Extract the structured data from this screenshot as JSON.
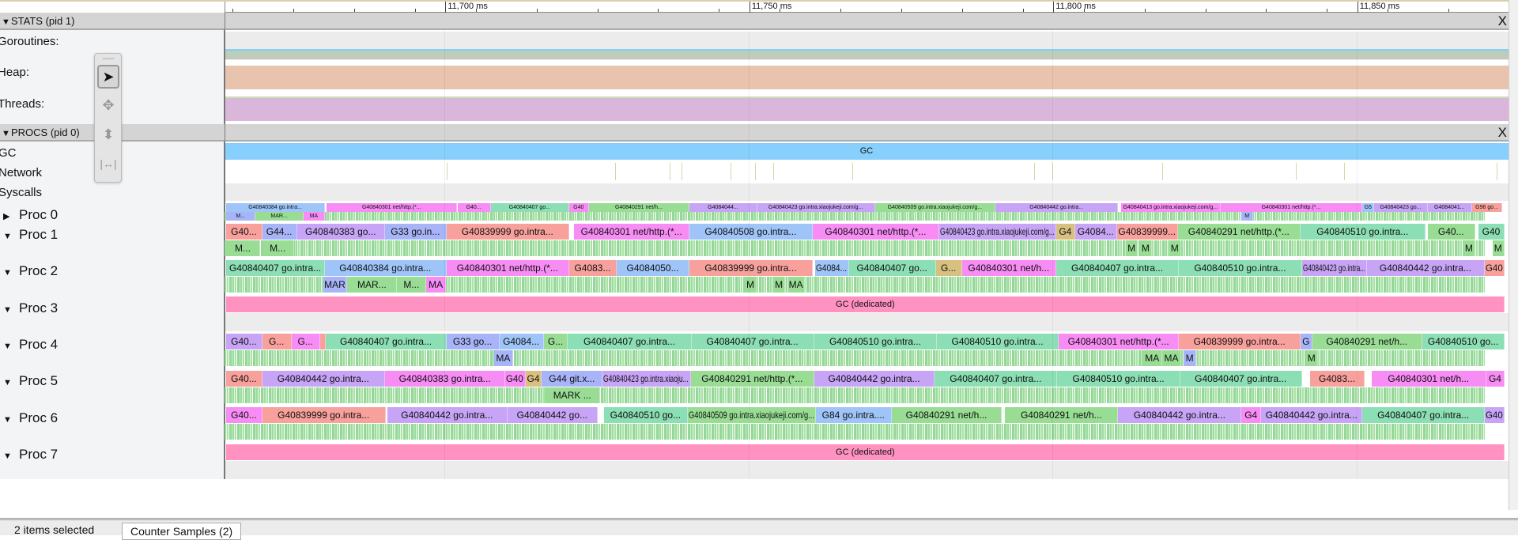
{
  "ruler": {
    "range_ms": [
      11663.8,
      11875
    ],
    "labels": [
      {
        "ms": 11700,
        "text": "11,700 ms"
      },
      {
        "ms": 11750,
        "text": "11,750 ms"
      },
      {
        "ms": 11800,
        "text": "11,800 ms"
      },
      {
        "ms": 11850,
        "text": "11,850 ms"
      }
    ]
  },
  "stats": {
    "header": "STATS (pid 1)",
    "close": "X",
    "rows": [
      "Goroutines:",
      "Heap:",
      "Threads:"
    ]
  },
  "procs": {
    "header": "PROCS (pid 0)",
    "close": "X",
    "gc_label": "GC",
    "gc_slice": "GC",
    "network": "Network",
    "syscalls": "Syscalls",
    "proc_names": [
      "Proc 0",
      "Proc 1",
      "Proc 2",
      "Proc 3",
      "Proc 4",
      "Proc 5",
      "Proc 6",
      "Proc 7"
    ]
  },
  "colors": {
    "p": "#f88cf5",
    "s": "#f8a19c",
    "b": "#9fc4f8",
    "l": "#c7a4f6",
    "w": "#a8b4f8",
    "m": "#8cdeb4",
    "g": "#99dd95",
    "t": "#d8c080",
    "gc": "#87cffc",
    "gcd": "#ff92c0",
    "heap": "#e8c3ae",
    "threads": "#dab7da",
    "gor": "#bfcbbb",
    "gor_top": "#8fd0e6"
  },
  "slices": {
    "proc0": [
      [
        11664.1,
        11680.3,
        "G40840384 go.intra...",
        "b"
      ],
      [
        11680.6,
        11702.1,
        "G40840301 net/http.(*...",
        "p"
      ],
      [
        11702.1,
        11707.6,
        "G40...",
        "p"
      ],
      [
        11707.6,
        11720.5,
        "G40840407 go...",
        "m"
      ],
      [
        11720.5,
        11723.7,
        "G40",
        "p"
      ],
      [
        11723.7,
        11740.3,
        "G40840291 net/h...",
        "g"
      ],
      [
        11740.3,
        11751.4,
        "G4084044...",
        "l"
      ],
      [
        11751.4,
        11770.8,
        "G40840423 go.intra.xiaojukeji.com/g...",
        "l"
      ],
      [
        11770.8,
        11790.6,
        "G40840509 go.intra.xiaojukeji.com/g...",
        "g"
      ],
      [
        11790.6,
        11810.8,
        "G40840442 go.intra...",
        "l"
      ],
      [
        11811.3,
        11827.6,
        "G40840413 go.intra.xiaojukeji.com/g...",
        "p"
      ],
      [
        11827.6,
        11851.0,
        "G40840301 net/http.(*...",
        "p"
      ],
      [
        11851.0,
        11852.9,
        "G5",
        "b"
      ],
      [
        11852.9,
        11861.7,
        "G40840423 go...",
        "l"
      ],
      [
        11861.7,
        11869.0,
        "G4084041...",
        "l"
      ],
      [
        11869.0,
        11874.0,
        "G96 go...",
        "s"
      ]
    ],
    "proc0_sub": [
      [
        11664.1,
        11668.9,
        "M...",
        "w"
      ],
      [
        11668.9,
        11676.8,
        "MAR...",
        "g"
      ],
      [
        11676.8,
        11680.3,
        "MA",
        "p"
      ],
      [
        11831.1,
        11833.0,
        "M",
        "w"
      ]
    ],
    "proc1": [
      [
        11664.1,
        11670.0,
        "G40...",
        "s"
      ],
      [
        11670.0,
        11675.7,
        "G44...",
        "w"
      ],
      [
        11675.7,
        11690.2,
        "G40840383 go...",
        "l"
      ],
      [
        11690.2,
        11700.3,
        "G33 go.in...",
        "w"
      ],
      [
        11700.3,
        11720.5,
        "G40839999 go.intra...",
        "s"
      ],
      [
        11721.3,
        11740.3,
        "G40840301 net/http.(*...",
        "p"
      ],
      [
        11740.3,
        11760.5,
        "G40840508 go.intra...",
        "b"
      ],
      [
        11760.5,
        11781.4,
        "G40840301 net/http.(*...",
        "p"
      ],
      [
        11781.4,
        11800.6,
        "G40840423 go.intra.xiaojukeji.com/g...",
        "l"
      ],
      [
        11800.6,
        11803.7,
        "G4",
        "t"
      ],
      [
        11803.7,
        11810.6,
        "G4084...",
        "l"
      ],
      [
        11810.6,
        11820.6,
        "G40839999...",
        "s"
      ],
      [
        11820.6,
        11840.8,
        "G40840291 net/http.(*...",
        "g"
      ],
      [
        11840.8,
        11861.3,
        "G40840510 go.intra...",
        "m"
      ],
      [
        11861.7,
        11869.5,
        "G40...",
        "g"
      ],
      [
        11870.0,
        11874.4,
        "G40",
        "m"
      ]
    ],
    "proc1_sub": [
      [
        11664.1,
        11669.6,
        "M...",
        "g"
      ],
      [
        11670.0,
        11675.2,
        "M...",
        "g"
      ],
      [
        11812.1,
        11814.0,
        "M",
        "g"
      ],
      [
        11814.4,
        11816.3,
        "M",
        "g"
      ],
      [
        11819.2,
        11821.1,
        "M",
        "g"
      ],
      [
        11867.6,
        11869.5,
        "M",
        "g"
      ],
      [
        11872.4,
        11874.3,
        "M",
        "g"
      ]
    ],
    "proc2": [
      [
        11664.1,
        11680.3,
        "G40840407 go.intra...",
        "m"
      ],
      [
        11680.3,
        11700.3,
        "G40840384 go.intra...",
        "b"
      ],
      [
        11700.3,
        11720.5,
        "G40840301 net/http.(*...",
        "p"
      ],
      [
        11720.5,
        11728.3,
        "G4083...",
        "s"
      ],
      [
        11728.3,
        11740.3,
        "G4084050...",
        "b"
      ],
      [
        11740.3,
        11760.5,
        "G40839999 go.intra...",
        "s"
      ],
      [
        11761.0,
        11766.5,
        "G4084...",
        "b"
      ],
      [
        11766.5,
        11780.8,
        "G40840407 go...",
        "m"
      ],
      [
        11780.8,
        11785.1,
        "G...",
        "t"
      ],
      [
        11785.1,
        11800.6,
        "G40840301 net/h...",
        "p"
      ],
      [
        11800.6,
        11820.8,
        "G40840407 go.intra...",
        "m"
      ],
      [
        11820.8,
        11841.0,
        "G40840510 go.intra...",
        "m"
      ],
      [
        11841.0,
        11851.7,
        "G40840423 go.intra...",
        "l"
      ],
      [
        11851.7,
        11871.1,
        "G40840442 go.intra...",
        "l"
      ],
      [
        11871.1,
        11874.4,
        "G40",
        "s"
      ]
    ],
    "proc2_sub": [
      [
        11680.0,
        11684.0,
        "MAR",
        "w"
      ],
      [
        11684.0,
        11692.2,
        "MAR...",
        "g"
      ],
      [
        11692.2,
        11697.0,
        "M...",
        "g"
      ],
      [
        11697.0,
        11700.2,
        "MA",
        "p"
      ],
      [
        11749.4,
        11751.3,
        "M",
        "g"
      ],
      [
        11754.1,
        11756.0,
        "M",
        "g"
      ],
      [
        11756.5,
        11759.2,
        "MA",
        "g"
      ]
    ],
    "proc3": [
      [
        11664.1,
        11874.4,
        "GC (dedicated)",
        "gcd"
      ]
    ],
    "proc4": [
      [
        11664.1,
        11670.0,
        "G40...",
        "l"
      ],
      [
        11670.0,
        11674.8,
        "G...",
        "s"
      ],
      [
        11674.8,
        11679.5,
        "G...",
        "p"
      ],
      [
        11679.5,
        11680.5,
        "",
        "s"
      ],
      [
        11680.5,
        11700.3,
        "G40840407 go.intra...",
        "m"
      ],
      [
        11700.3,
        11709.0,
        "G33 go...",
        "w"
      ],
      [
        11709.0,
        11716.3,
        "G4084...",
        "b"
      ],
      [
        11716.3,
        11720.3,
        "G...",
        "g"
      ],
      [
        11720.3,
        11740.6,
        "G40840407 go.intra...",
        "m"
      ],
      [
        11740.6,
        11760.8,
        "G40840407 go.intra...",
        "m"
      ],
      [
        11760.8,
        11781.0,
        "G40840510 go.intra...",
        "m"
      ],
      [
        11781.0,
        11801.0,
        "G40840510 go.intra...",
        "m"
      ],
      [
        11801.0,
        11820.8,
        "G40840301 net/http.(*...",
        "p"
      ],
      [
        11820.8,
        11840.8,
        "G40839999 go.intra...",
        "s"
      ],
      [
        11840.8,
        11842.7,
        "G",
        "w"
      ],
      [
        11842.7,
        11860.8,
        "G40840291 net/h...",
        "g"
      ],
      [
        11860.8,
        11874.4,
        "G40840510 go...",
        "m"
      ]
    ],
    "proc4_sub": [
      [
        11708.1,
        11711.3,
        "MA",
        "w"
      ],
      [
        11814.9,
        11818.0,
        "MA",
        "g"
      ],
      [
        11818.1,
        11821.1,
        "MA",
        "g"
      ],
      [
        11821.6,
        11823.6,
        "M",
        "w"
      ],
      [
        11841.7,
        11843.6,
        "M",
        "g"
      ]
    ],
    "proc5": [
      [
        11664.1,
        11670.0,
        "G40...",
        "s"
      ],
      [
        11670.0,
        11690.2,
        "G40840442 go.intra...",
        "l"
      ],
      [
        11690.2,
        11710.0,
        "G40840383 go.intra...",
        "p"
      ],
      [
        11710.0,
        11713.3,
        "G40",
        "p"
      ],
      [
        11713.3,
        11716.0,
        "G4",
        "t"
      ],
      [
        11716.0,
        11726.0,
        "G44 git.x...",
        "w"
      ],
      [
        11726.0,
        11740.5,
        "G40840423 go.intra.xiaoju...",
        "l"
      ],
      [
        11740.5,
        11760.8,
        "G40840291 net/http.(*...",
        "g"
      ],
      [
        11760.8,
        11780.6,
        "G40840442 go.intra...",
        "l"
      ],
      [
        11780.6,
        11800.8,
        "G40840407 go.intra...",
        "m"
      ],
      [
        11800.8,
        11821.0,
        "G40840510 go.intra...",
        "m"
      ],
      [
        11821.0,
        11841.0,
        "G40840407 go.intra...",
        "m"
      ],
      [
        11842.4,
        11851.3,
        "G4083...",
        "s"
      ],
      [
        11852.5,
        11871.3,
        "G40840301 net/h...",
        "p"
      ],
      [
        11871.3,
        11874.4,
        "G4",
        "p"
      ]
    ],
    "proc5_sub": [
      [
        11716.5,
        11725.6,
        "MARK ...",
        "g"
      ]
    ],
    "proc6": [
      [
        11664.1,
        11670.0,
        "G40...",
        "p"
      ],
      [
        11670.0,
        11690.3,
        "G40839999 go.intra...",
        "s"
      ],
      [
        11690.6,
        11710.3,
        "G40840442 go.intra...",
        "l"
      ],
      [
        11710.3,
        11725.2,
        "G40840442 go...",
        "l"
      ],
      [
        11726.2,
        11740.0,
        "G40840510 go...",
        "m"
      ],
      [
        11740.0,
        11761.1,
        "G40840509 go.intra.xiaojukeji.com/g...",
        "g"
      ],
      [
        11761.1,
        11773.5,
        "G84 go.intra....",
        "b"
      ],
      [
        11773.5,
        11791.7,
        "G40840291 net/h...",
        "g"
      ],
      [
        11792.2,
        11810.8,
        "G40840291 net/h...",
        "g"
      ],
      [
        11810.8,
        11831.1,
        "G40840442 go.intra...",
        "l"
      ],
      [
        11831.1,
        11834.3,
        "G4",
        "p"
      ],
      [
        11834.3,
        11851.0,
        "G40840442 go.intra...",
        "l"
      ],
      [
        11851.0,
        11871.1,
        "G40840407 go.intra...",
        "m"
      ],
      [
        11871.1,
        11874.4,
        "G40",
        "l"
      ]
    ],
    "proc6_sub": [],
    "proc7": [
      [
        11664.1,
        11874.4,
        "GC (dedicated)",
        "gcd"
      ]
    ]
  },
  "bottom": {
    "selection": "2 items selected",
    "tab": "Counter Samples (2)"
  }
}
